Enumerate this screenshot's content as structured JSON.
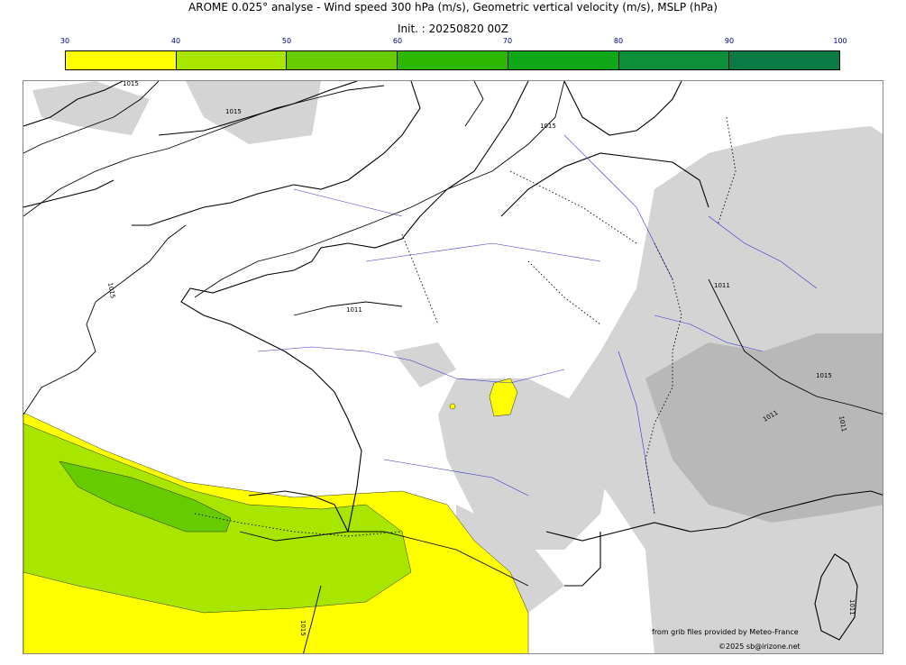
{
  "title_line1": "AROME 0.025° analyse - Wind speed 300 hPa (m/s), Geometric vertical velocity (m/s), MSLP (hPa)",
  "title_line2": "Init. : 20250820 00Z",
  "colorbar": {
    "ticks": [
      "30",
      "40",
      "50",
      "60",
      "70",
      "80",
      "90",
      "100"
    ],
    "colors": [
      "#ffff00",
      "#a8e600",
      "#66cc00",
      "#2db800",
      "#10a818",
      "#0d8f3a",
      "#0a7a45",
      "#0a6b4e"
    ]
  },
  "isobar_labels": {
    "a": "1015",
    "b": "1015",
    "c": "1015",
    "d": "1015",
    "e": "1011",
    "f": "1011",
    "g": "1015",
    "h": "1011",
    "i": "1011",
    "j": "1015",
    "k": "1011"
  },
  "credits": {
    "line1": "from grib files provided by Meteo-France",
    "line2": "©2025 sb@irizone.net"
  }
}
